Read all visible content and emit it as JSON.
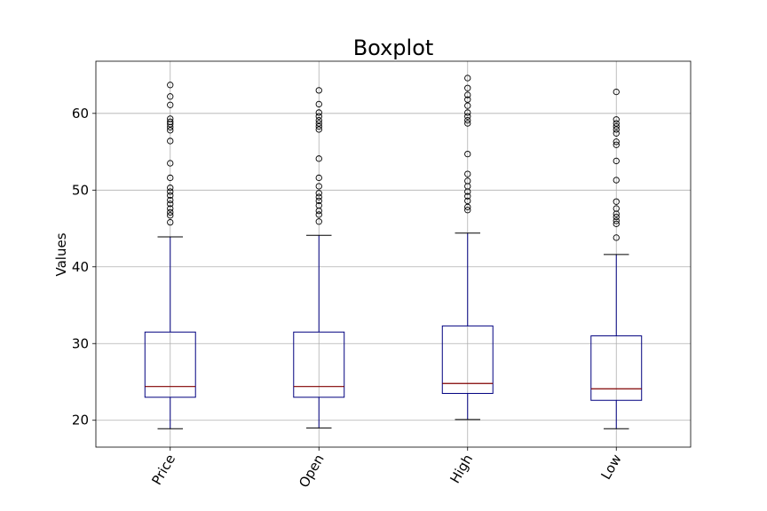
{
  "chart_data": {
    "type": "boxplot",
    "title": "Boxplot",
    "xlabel": "",
    "ylabel": "Values",
    "ylim": [
      16.5,
      66.8
    ],
    "yticks": [
      20,
      30,
      40,
      50,
      60
    ],
    "grid": true,
    "categories": [
      "Price",
      "Open",
      "High",
      "Low"
    ],
    "colors": {
      "box": "#000080",
      "median": "#800000",
      "outlier": "#000000"
    },
    "boxes": [
      {
        "name": "Price",
        "whislo": 18.9,
        "q1": 23.0,
        "med": 24.4,
        "q3": 31.5,
        "whishi": 43.9,
        "fliers": [
          45.8,
          46.7,
          47.1,
          47.6,
          48.2,
          48.7,
          49.3,
          49.8,
          50.3,
          51.6,
          53.5,
          56.4,
          57.8,
          58.2,
          58.6,
          58.9,
          59.3,
          61.1,
          62.2,
          63.7
        ]
      },
      {
        "name": "Open",
        "whislo": 19.0,
        "q1": 23.0,
        "med": 24.4,
        "q3": 31.5,
        "whishi": 44.1,
        "fliers": [
          45.9,
          46.8,
          47.3,
          48.0,
          48.6,
          49.1,
          49.6,
          50.5,
          51.6,
          54.1,
          57.9,
          58.3,
          58.7,
          59.1,
          59.6,
          60.1,
          61.2,
          63.0
        ]
      },
      {
        "name": "High",
        "whislo": 20.1,
        "q1": 23.5,
        "med": 24.8,
        "q3": 32.3,
        "whishi": 44.4,
        "fliers": [
          47.4,
          47.8,
          48.6,
          49.2,
          49.8,
          50.5,
          51.2,
          52.1,
          54.7,
          58.7,
          59.1,
          59.6,
          60.1,
          61.0,
          61.8,
          62.4,
          63.3,
          64.6
        ]
      },
      {
        "name": "Low",
        "whislo": 18.9,
        "q1": 22.6,
        "med": 24.1,
        "q3": 31.0,
        "whishi": 41.6,
        "fliers": [
          43.8,
          45.6,
          46.0,
          46.5,
          46.9,
          47.6,
          48.5,
          51.3,
          53.8,
          55.9,
          56.3,
          57.4,
          57.9,
          58.3,
          58.7,
          59.2,
          62.8
        ]
      }
    ]
  }
}
